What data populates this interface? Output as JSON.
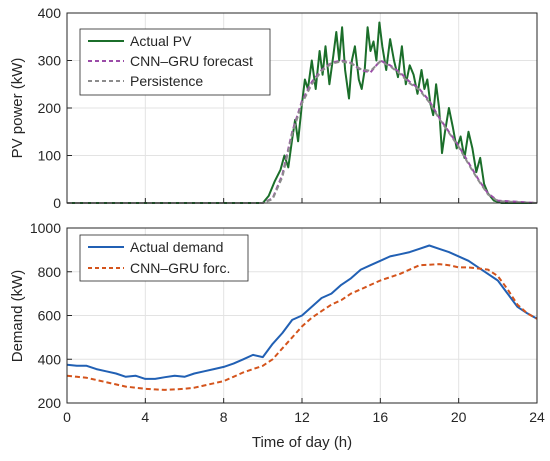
{
  "chart_data": [
    {
      "type": "line",
      "xlabel": "",
      "ylabel": "PV power (kW)",
      "xlim": [
        0,
        24
      ],
      "ylim": [
        0,
        400
      ],
      "xticks": [
        0,
        4,
        8,
        12,
        16,
        20,
        24
      ],
      "yticks": [
        0,
        100,
        200,
        300,
        400
      ],
      "xticklabels_visible": false,
      "grid": true,
      "legend_position": "top-left",
      "series": [
        {
          "name": "Actual PV",
          "color": "#1b6e2a",
          "style": "solid",
          "x": [
            0,
            10,
            10.3,
            10.6,
            10.9,
            11.1,
            11.3,
            11.5,
            11.65,
            11.8,
            12.0,
            12.15,
            12.3,
            12.5,
            12.7,
            12.9,
            13.05,
            13.2,
            13.4,
            13.6,
            13.75,
            13.9,
            14.05,
            14.2,
            14.4,
            14.55,
            14.7,
            14.9,
            15.05,
            15.2,
            15.35,
            15.5,
            15.65,
            15.8,
            15.95,
            16.1,
            16.3,
            16.5,
            16.7,
            16.9,
            17.1,
            17.3,
            17.5,
            17.7,
            17.9,
            18.1,
            18.25,
            18.4,
            18.55,
            18.7,
            18.85,
            19.0,
            19.15,
            19.3,
            19.5,
            19.7,
            19.9,
            20.1,
            20.3,
            20.5,
            20.7,
            20.9,
            21.1,
            21.3,
            21.5,
            21.8,
            22.2,
            24
          ],
          "y": [
            0,
            0,
            15,
            45,
            70,
            100,
            75,
            135,
            175,
            130,
            210,
            260,
            240,
            300,
            240,
            320,
            270,
            330,
            250,
            310,
            360,
            300,
            370,
            280,
            220,
            300,
            330,
            260,
            240,
            280,
            370,
            320,
            340,
            300,
            380,
            330,
            280,
            345,
            300,
            265,
            330,
            250,
            290,
            270,
            230,
            280,
            240,
            260,
            210,
            185,
            250,
            200,
            105,
            150,
            200,
            160,
            115,
            140,
            95,
            150,
            115,
            65,
            95,
            40,
            20,
            5,
            0,
            0
          ]
        },
        {
          "name": "CNN–GRU forecast",
          "color": "#9b4ca8",
          "style": "dashed",
          "x": [
            0,
            10,
            10.5,
            11,
            11.5,
            12,
            12.5,
            13,
            13.5,
            14,
            14.5,
            15,
            15.5,
            16,
            16.5,
            17,
            17.5,
            18,
            18.5,
            19,
            19.5,
            20,
            20.5,
            21,
            21.5,
            22,
            24
          ],
          "y": [
            0,
            0,
            10,
            60,
            150,
            215,
            255,
            280,
            295,
            300,
            295,
            280,
            275,
            300,
            290,
            275,
            255,
            240,
            215,
            180,
            150,
            120,
            85,
            50,
            20,
            5,
            0
          ]
        },
        {
          "name": "Persistence",
          "color": "#8c8c8c",
          "style": "dashed",
          "x": [
            0,
            10,
            10.5,
            11,
            11.5,
            12,
            12.5,
            13,
            13.5,
            14,
            14.5,
            15,
            15.5,
            16,
            16.5,
            17,
            17.5,
            18,
            18.5,
            19,
            19.5,
            20,
            20.5,
            21,
            21.5,
            22,
            24
          ],
          "y": [
            0,
            0,
            8,
            55,
            145,
            210,
            250,
            278,
            293,
            298,
            294,
            282,
            278,
            298,
            288,
            272,
            252,
            238,
            212,
            178,
            148,
            118,
            82,
            48,
            18,
            4,
            0
          ]
        }
      ]
    },
    {
      "type": "line",
      "xlabel": "Time of day (h)",
      "ylabel": "Demand (kW)",
      "xlim": [
        0,
        24
      ],
      "ylim": [
        200,
        1000
      ],
      "xticks": [
        0,
        4,
        8,
        12,
        16,
        20,
        24
      ],
      "yticks": [
        200,
        400,
        600,
        800,
        1000
      ],
      "grid": true,
      "legend_position": "top-left",
      "series": [
        {
          "name": "Actual demand",
          "color": "#2160b4",
          "style": "solid",
          "x": [
            0,
            0.5,
            1,
            1.5,
            2,
            2.5,
            3,
            3.5,
            4,
            4.5,
            5,
            5.5,
            6,
            6.5,
            7,
            7.5,
            8,
            8.5,
            9,
            9.5,
            10,
            10.5,
            11,
            11.5,
            12,
            12.5,
            13,
            13.5,
            14,
            14.5,
            15,
            15.5,
            16,
            16.5,
            17,
            17.5,
            18,
            18.5,
            19,
            19.5,
            20,
            20.5,
            21,
            21.5,
            22,
            22.5,
            23,
            23.5,
            24
          ],
          "y": [
            375,
            370,
            370,
            355,
            345,
            335,
            320,
            325,
            310,
            310,
            318,
            325,
            320,
            335,
            345,
            355,
            365,
            380,
            400,
            420,
            410,
            470,
            520,
            580,
            600,
            640,
            680,
            700,
            740,
            770,
            810,
            830,
            850,
            870,
            880,
            890,
            905,
            920,
            905,
            890,
            870,
            850,
            820,
            790,
            760,
            700,
            640,
            610,
            585
          ]
        },
        {
          "name": "CNN–GRU forc.",
          "color": "#d4541c",
          "style": "dashed",
          "x": [
            0,
            0.5,
            1,
            1.5,
            2,
            2.5,
            3,
            3.5,
            4,
            4.5,
            5,
            5.5,
            6,
            6.5,
            7,
            7.5,
            8,
            8.5,
            9,
            9.5,
            10,
            10.5,
            11,
            11.5,
            12,
            12.5,
            13,
            13.5,
            14,
            14.5,
            15,
            15.5,
            16,
            16.5,
            17,
            17.5,
            18,
            18.5,
            19,
            19.5,
            20,
            20.5,
            21,
            21.5,
            22,
            22.5,
            23,
            23.5,
            24
          ],
          "y": [
            325,
            320,
            315,
            305,
            295,
            285,
            275,
            270,
            265,
            262,
            260,
            262,
            265,
            270,
            280,
            290,
            300,
            320,
            340,
            355,
            370,
            400,
            450,
            500,
            550,
            590,
            620,
            650,
            670,
            700,
            720,
            740,
            760,
            775,
            790,
            810,
            830,
            832,
            835,
            830,
            820,
            820,
            815,
            810,
            780,
            720,
            650,
            610,
            585
          ]
        }
      ]
    }
  ]
}
